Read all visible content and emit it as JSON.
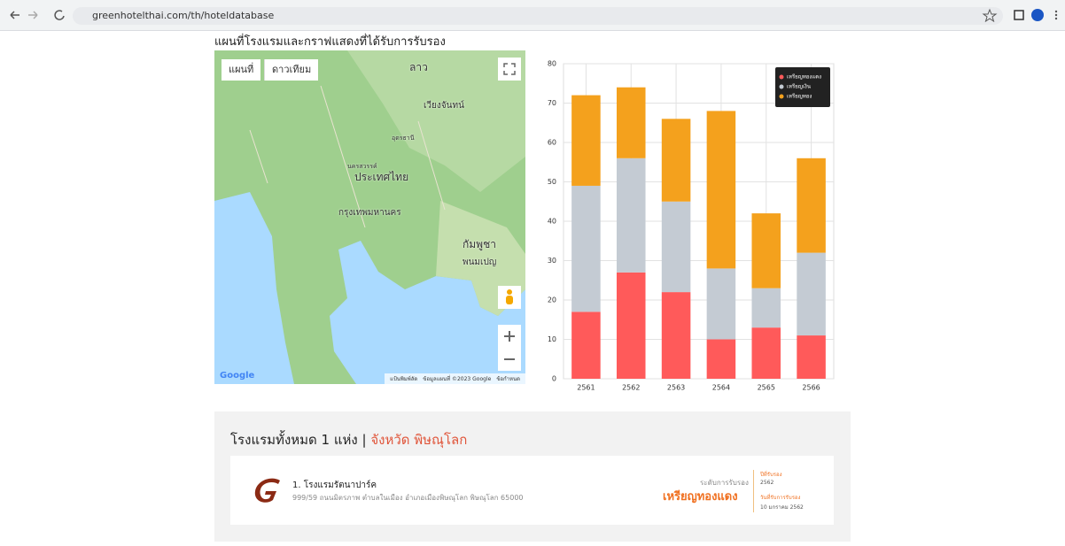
{
  "browser": {
    "url": "greenhotelthai.com/th/hoteldatabase"
  },
  "heading": "แผนที่โรงแรมและกราฟแสดงที่ได้รับการรับรอง",
  "map": {
    "buttons": [
      "แผนที่",
      "ดาวเทียม"
    ],
    "labels": [
      "ลาว",
      "เวียงจันทน์",
      "ประเทศไทย",
      "กรุงเทพมหานคร",
      "กัมพูชา",
      "พนมเปญ",
      "นครสวรรค์",
      "อุดรธานี"
    ],
    "logo": "Google",
    "attribution": [
      "แป้นพิมพ์ลัด",
      "ข้อมูลแผนที่ ©2023 Google",
      "ข้อกำหนด"
    ]
  },
  "chart_data": {
    "type": "stacked_bar",
    "categories": [
      "2561",
      "2562",
      "2563",
      "2564",
      "2565",
      "2566"
    ],
    "series": [
      {
        "name": "เหรียญทองแดง",
        "color": "#ff5a5a",
        "values": [
          17,
          27,
          22,
          10,
          13,
          11
        ]
      },
      {
        "name": "เหรียญเงิน",
        "color": "#c4cbd3",
        "values": [
          32,
          29,
          23,
          18,
          10,
          21
        ]
      },
      {
        "name": "เหรียญทอง",
        "color": "#f4a11d",
        "values": [
          23,
          18,
          21,
          40,
          19,
          24
        ]
      }
    ],
    "ylim": [
      0,
      80
    ],
    "yticks": [
      0,
      10,
      20,
      30,
      40,
      50,
      60,
      70,
      80
    ],
    "grid": true,
    "legend": "top-right"
  },
  "hotel_list": {
    "title": "โรงแรมทั้งหมด 1 แห่ง |",
    "province": "จังหวัด พิษณุโลก",
    "hotels": [
      {
        "name": "1. โรงแรมรัตนาปาร์ค",
        "address": "999/59 ถนนมิตรภาพ ตำบลในเมือง อำเภอเมืองพิษณุโลก พิษณุโลก 65000",
        "level_label": "ระดับการรับรอง",
        "level": "เหรียญทองแดง",
        "year_label": "ปีที่รับรอง",
        "year": "2562",
        "date_label": "วันที่รับการรับรอง",
        "date": "10 มกราคม 2562"
      }
    ]
  }
}
